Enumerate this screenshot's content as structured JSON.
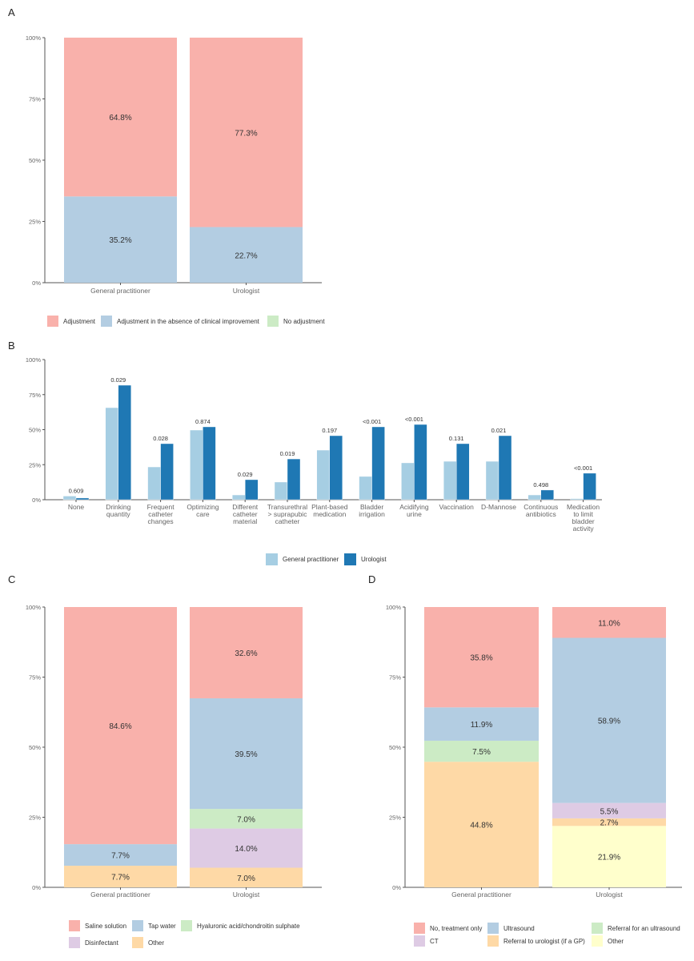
{
  "chart_data": [
    {
      "panel": "A",
      "type": "bar",
      "stacked": true,
      "categories": [
        "General practitioner",
        "Urologist"
      ],
      "ylim": [
        0,
        100
      ],
      "yticks": [
        "0%",
        "25%",
        "50%",
        "75%",
        "100%"
      ],
      "legend": "bottom",
      "series": [
        {
          "name": "Adjustment",
          "color": "#f9b1ab",
          "values": [
            64.8,
            77.3
          ],
          "labels": [
            "64.8%",
            "77.3%"
          ]
        },
        {
          "name": "Adjustment in the absence of clinical improvement",
          "color": "#b3cde2",
          "values": [
            35.2,
            22.7
          ],
          "labels": [
            "35.2%",
            "22.7%"
          ]
        },
        {
          "name": "No adjustment",
          "color": "#ccebc5",
          "values": [
            0,
            0
          ],
          "labels": [
            "",
            ""
          ]
        }
      ]
    },
    {
      "panel": "B",
      "type": "bar",
      "stacked": false,
      "categories": [
        [
          "None"
        ],
        [
          "Drinking",
          "quantity"
        ],
        [
          "Frequent",
          "catheter",
          "changes"
        ],
        [
          "Optimizing",
          "care"
        ],
        [
          "Different",
          "catheter",
          "material"
        ],
        [
          "Transurethral",
          "> suprapubic",
          "catheter"
        ],
        [
          "Plant-based",
          "medication"
        ],
        [
          "Bladder",
          "irrigation"
        ],
        [
          "Acidifying",
          "urine"
        ],
        [
          "Vaccination"
        ],
        [
          "D-Mannose"
        ],
        [
          "Continuous",
          "antibiotics"
        ],
        [
          "Medication",
          "to limit",
          "bladder",
          "activity"
        ]
      ],
      "ylim": [
        0,
        100
      ],
      "yticks": [
        "0%",
        "25%",
        "50%",
        "75%",
        "100%"
      ],
      "legend": "bottom",
      "series": [
        {
          "name": "General practitioner",
          "color": "#a6cee3",
          "values": [
            2.6,
            65.7,
            23.4,
            49.7,
            3.4,
            12.6,
            35.4,
            16.6,
            26.3,
            27.4,
            27.4,
            3.4,
            0.8
          ]
        },
        {
          "name": "Urologist",
          "color": "#1f78b4",
          "values": [
            1.2,
            81.7,
            40.0,
            52.0,
            14.3,
            29.1,
            45.7,
            52.0,
            53.7,
            40.0,
            45.7,
            6.9,
            18.9
          ]
        }
      ],
      "annotations": [
        "0.609",
        "0.029",
        "0.028",
        "0.874",
        "0.029",
        "0.019",
        "0.197",
        "<0.001",
        "<0.001",
        "0.131",
        "0.021",
        "0.498",
        "<0.001"
      ]
    },
    {
      "panel": "C",
      "type": "bar",
      "stacked": true,
      "categories": [
        "General practitioner",
        "Urologist"
      ],
      "ylim": [
        0,
        100
      ],
      "yticks": [
        "0%",
        "25%",
        "50%",
        "75%",
        "100%"
      ],
      "legend": "bottom",
      "series": [
        {
          "name": "Saline solution",
          "color": "#f9b1ab",
          "values": [
            84.6,
            32.6
          ],
          "labels": [
            "84.6%",
            "32.6%"
          ]
        },
        {
          "name": "Tap water",
          "color": "#b3cde2",
          "values": [
            7.7,
            39.5
          ],
          "labels": [
            "7.7%",
            "39.5%"
          ]
        },
        {
          "name": "Hyaluronic acid/chondroitin sulphate",
          "color": "#ccebc5",
          "values": [
            0,
            7.0
          ],
          "labels": [
            "",
            "7.0%"
          ]
        },
        {
          "name": "Disinfectant",
          "color": "#decbe4",
          "values": [
            0,
            14.0
          ],
          "labels": [
            "",
            "14.0%"
          ]
        },
        {
          "name": "Other",
          "color": "#fed9a6",
          "values": [
            7.7,
            7.0
          ],
          "labels": [
            "7.7%",
            "7.0%"
          ]
        }
      ]
    },
    {
      "panel": "D",
      "type": "bar",
      "stacked": true,
      "categories": [
        "General practitioner",
        "Urologist"
      ],
      "ylim": [
        0,
        100
      ],
      "yticks": [
        "0%",
        "25%",
        "50%",
        "75%",
        "100%"
      ],
      "legend": "bottom",
      "series": [
        {
          "name": "No, treatment only",
          "color": "#f9b1ab",
          "values": [
            35.8,
            11.0
          ],
          "labels": [
            "35.8%",
            "11.0%"
          ]
        },
        {
          "name": "Ultrasound",
          "color": "#b3cde2",
          "values": [
            11.9,
            58.9
          ],
          "labels": [
            "11.9%",
            "58.9%"
          ]
        },
        {
          "name": "Referral for an ultrasound",
          "color": "#ccebc5",
          "values": [
            7.5,
            0
          ],
          "labels": [
            "7.5%",
            ""
          ]
        },
        {
          "name": "CT",
          "color": "#decbe4",
          "values": [
            0,
            5.5
          ],
          "labels": [
            "",
            "5.5%"
          ]
        },
        {
          "name": "Referral to urologist (if a GP)",
          "color": "#fed9a6",
          "values": [
            44.8,
            2.7
          ],
          "labels": [
            "44.8%",
            "2.7%"
          ]
        },
        {
          "name": "Other",
          "color": "#ffffcc",
          "values": [
            0,
            21.9
          ],
          "labels": [
            "",
            "21.9%"
          ]
        }
      ]
    }
  ]
}
